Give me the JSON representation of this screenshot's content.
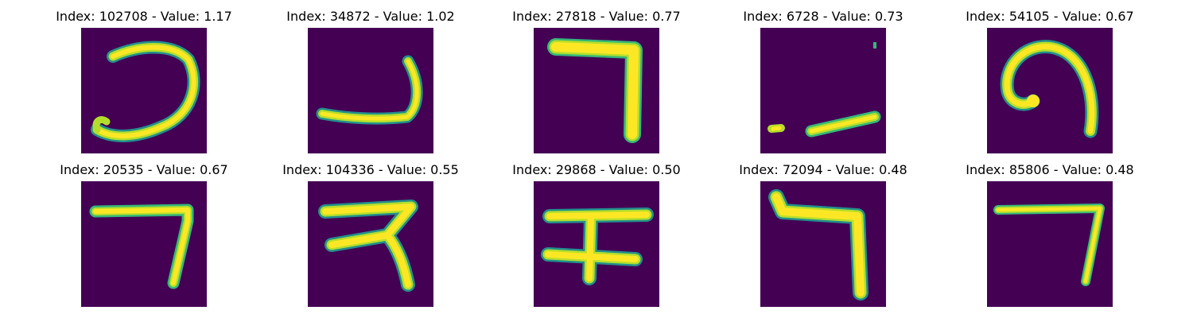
{
  "colors": {
    "background": "#440154",
    "glyph_core": "#fde725",
    "glyph_mid": "#b5de2b",
    "glyph_edge": "#35b779",
    "glyph_halo": "#21908d"
  },
  "panels": [
    {
      "title": "Index: 102708 - Value: 1.17",
      "glyph": "open-loop-stroke"
    },
    {
      "title": "Index: 34872 - Value: 1.02",
      "glyph": "hook-stroke"
    },
    {
      "title": "Index: 27818 - Value: 0.77",
      "glyph": "seven-stroke"
    },
    {
      "title": "Index: 6728 - Value: 0.73",
      "glyph": "diagonal-dash-stroke"
    },
    {
      "title": "Index: 54105 - Value: 0.67",
      "glyph": "spiral-stroke"
    },
    {
      "title": "Index: 20535 - Value: 0.67",
      "glyph": "seven-stroke"
    },
    {
      "title": "Index: 104336 - Value: 0.55",
      "glyph": "three-bar-stroke"
    },
    {
      "title": "Index: 29868 - Value: 0.50",
      "glyph": "cross-bar-stroke"
    },
    {
      "title": "Index: 72094 - Value: 0.48",
      "glyph": "seven-stroke"
    },
    {
      "title": "Index: 85806 - Value: 0.48",
      "glyph": "thin-seven-stroke"
    }
  ]
}
